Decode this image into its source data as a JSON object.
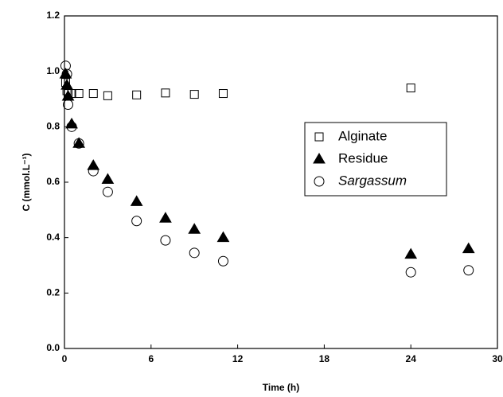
{
  "chart_data": {
    "type": "scatter",
    "x_label": "Time (h)",
    "y_label": "C (mmol.L⁻¹)",
    "xlim": [
      0,
      30
    ],
    "xticks": [
      0,
      6,
      12,
      18,
      24,
      30
    ],
    "ylim": [
      0,
      1.2
    ],
    "yticks": [
      {
        "value": 0,
        "label": "0.0"
      },
      {
        "value": 0.2,
        "label": "0.2"
      },
      {
        "value": 0.4,
        "label": "0.4"
      },
      {
        "value": 0.6,
        "label": "0.6"
      },
      {
        "value": 0.8,
        "label": "0.8"
      },
      {
        "value": 1,
        "label": "1.0"
      },
      {
        "value": 1.2,
        "label": "1.2"
      }
    ],
    "legend": "right",
    "series": [
      {
        "name": "Alginate",
        "color": "#000000",
        "marker": "square",
        "filled": false,
        "x": [
          0.08,
          0.17,
          0.25,
          0.5,
          1,
          2,
          3,
          5,
          7,
          9,
          11,
          24
        ],
        "values": [
          0.96,
          0.93,
          0.92,
          0.92,
          0.92,
          0.92,
          0.912,
          0.915,
          0.922,
          0.917,
          0.92,
          0.94
        ]
      },
      {
        "name": "Residue",
        "color": "#000000",
        "marker": "triangle",
        "filled": true,
        "x": [
          0.08,
          0.17,
          0.25,
          0.5,
          1,
          2,
          3,
          5,
          7,
          9,
          11,
          24,
          28
        ],
        "values": [
          0.99,
          0.95,
          0.91,
          0.81,
          0.74,
          0.66,
          0.61,
          0.53,
          0.47,
          0.43,
          0.4,
          0.34,
          0.36
        ]
      },
      {
        "name": "Sargassum",
        "color": "#000000",
        "marker": "circle",
        "filled": false,
        "x": [
          0.08,
          0.17,
          0.25,
          0.5,
          1,
          2,
          3,
          5,
          7,
          9,
          11,
          24,
          28
        ],
        "values": [
          1.02,
          0.99,
          0.88,
          0.8,
          0.74,
          0.64,
          0.565,
          0.46,
          0.39,
          0.345,
          0.315,
          0.275,
          0.282
        ]
      }
    ]
  }
}
